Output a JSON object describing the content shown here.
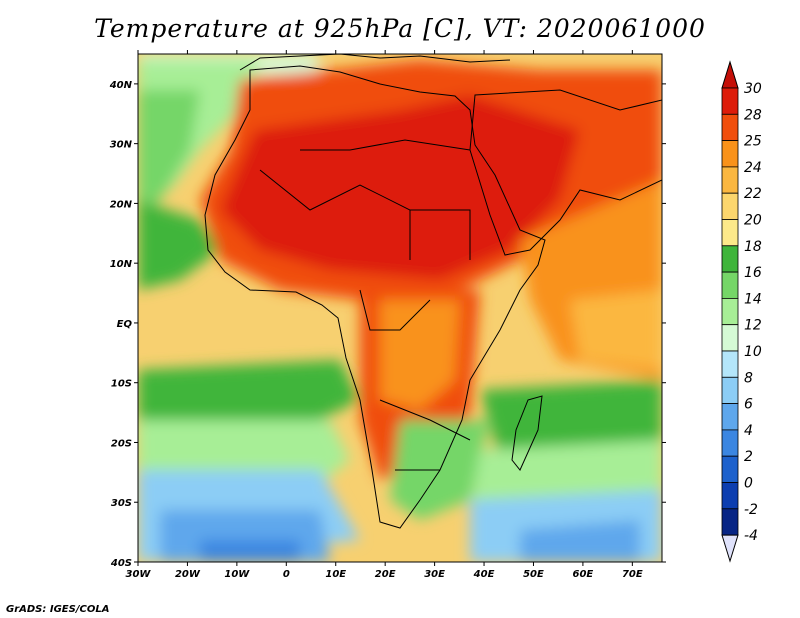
{
  "title": "Temperature at 925hPa [C], VT: 2020061000",
  "credit": "GrADS: IGES/COLA",
  "lat_ticks": [
    "40N",
    "30N",
    "20N",
    "10N",
    "EQ",
    "10S",
    "20S",
    "30S",
    "40S"
  ],
  "lon_ticks": [
    "30W",
    "20W",
    "10W",
    "0",
    "10E",
    "20E",
    "30E",
    "40E",
    "50E",
    "60E",
    "70E"
  ],
  "extent": {
    "lon_min": -30,
    "lon_max": 76,
    "lat_min": -40,
    "lat_max": 45
  },
  "colorbar": {
    "labels": [
      "30",
      "28",
      "25",
      "24",
      "22",
      "20",
      "18",
      "16",
      "14",
      "12",
      "10",
      "8",
      "6",
      "4",
      "2",
      "0",
      "-2",
      "-4"
    ],
    "colors": [
      "#dd1c0a",
      "#f04e0c",
      "#f9921a",
      "#fbb740",
      "#fcd66d",
      "#fde98a",
      "#3fb53b",
      "#75d667",
      "#a7ee96",
      "#d5fad5",
      "#b4e6fa",
      "#8ccdf5",
      "#5ea7ec",
      "#3b86e1",
      "#1d61cc",
      "#0c3eb0",
      "#072585"
    ],
    "top_cap": "#c40f08",
    "bottom_cap": "#dfe2fb"
  }
}
